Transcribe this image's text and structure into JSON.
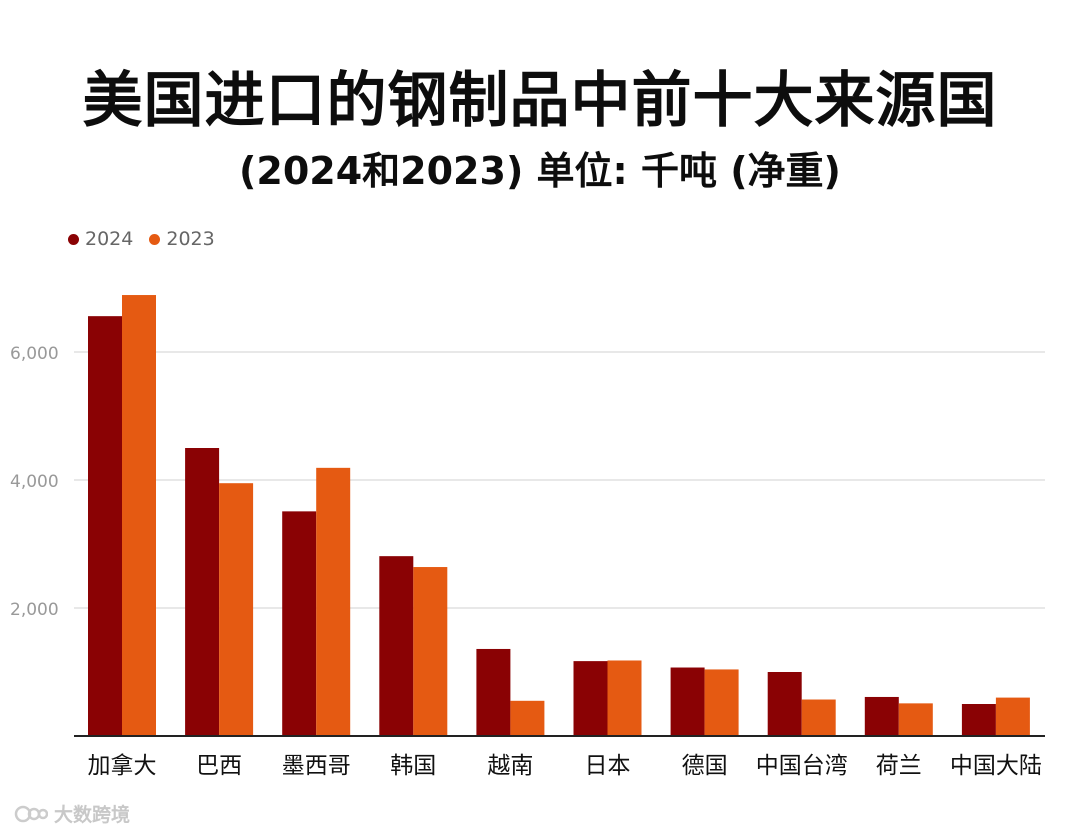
{
  "colors": {
    "series_2024": "#8a0204",
    "series_2023": "#e55a12",
    "grid": "#d9d9d9",
    "axis": "#222222"
  },
  "watermark": {
    "text": "大数跨境"
  },
  "chart_data": {
    "type": "bar",
    "title": "美国进口的钢制品中前十大来源国",
    "subtitle": "(2024和2023) 单位: 千吨 (净重)",
    "categories": [
      "加拿大",
      "巴西",
      "墨西哥",
      "韩国",
      "越南",
      "日本",
      "德国",
      "中国台湾",
      "荷兰",
      "中国大陆"
    ],
    "series": [
      {
        "name": "2024",
        "values": [
          6560,
          4500,
          3510,
          2810,
          1360,
          1170,
          1070,
          1000,
          610,
          500
        ]
      },
      {
        "name": "2023",
        "values": [
          6890,
          3950,
          4190,
          2640,
          550,
          1180,
          1040,
          570,
          510,
          600
        ]
      }
    ],
    "yticks": [
      2000,
      4000,
      6000
    ],
    "ytick_labels": [
      "2,000",
      "4,000",
      "6,000"
    ],
    "ylim": [
      0,
      7000
    ],
    "legend_position": "top-left",
    "grid": true,
    "xlabel": "",
    "ylabel": ""
  }
}
